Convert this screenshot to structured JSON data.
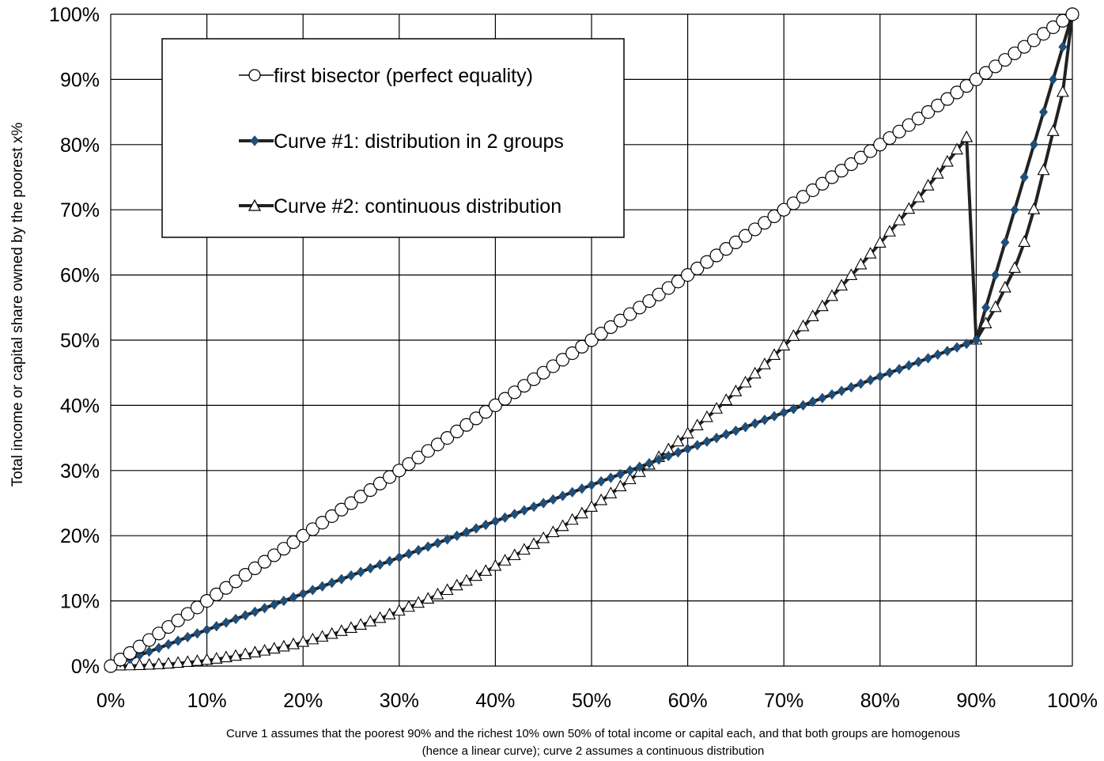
{
  "chart_data": {
    "type": "line",
    "title": "",
    "xlabel": "",
    "ylabel": "Total income or capital share owned by the poorest x%",
    "xlim": [
      0,
      100
    ],
    "ylim": [
      0,
      100
    ],
    "grid": true,
    "legend_position": "top-left",
    "x_ticks": [
      "0%",
      "10%",
      "20%",
      "30%",
      "40%",
      "50%",
      "60%",
      "70%",
      "80%",
      "90%",
      "100%"
    ],
    "y_ticks": [
      "0%",
      "10%",
      "20%",
      "30%",
      "40%",
      "50%",
      "60%",
      "70%",
      "80%",
      "90%",
      "100%"
    ],
    "x": [
      0,
      1,
      2,
      3,
      4,
      5,
      6,
      7,
      8,
      9,
      10,
      11,
      12,
      13,
      14,
      15,
      16,
      17,
      18,
      19,
      20,
      21,
      22,
      23,
      24,
      25,
      26,
      27,
      28,
      29,
      30,
      31,
      32,
      33,
      34,
      35,
      36,
      37,
      38,
      39,
      40,
      41,
      42,
      43,
      44,
      45,
      46,
      47,
      48,
      49,
      50,
      51,
      52,
      53,
      54,
      55,
      56,
      57,
      58,
      59,
      60,
      61,
      62,
      63,
      64,
      65,
      66,
      67,
      68,
      69,
      70,
      71,
      72,
      73,
      74,
      75,
      76,
      77,
      78,
      79,
      80,
      81,
      82,
      83,
      84,
      85,
      86,
      87,
      88,
      89,
      90,
      91,
      92,
      93,
      94,
      95,
      96,
      97,
      98,
      99,
      100
    ],
    "series": [
      {
        "name": "first bisector (perfect equality)",
        "marker": "circle-open",
        "color": "#000000",
        "values": [
          0,
          1,
          2,
          3,
          4,
          5,
          6,
          7,
          8,
          9,
          10,
          11,
          12,
          13,
          14,
          15,
          16,
          17,
          18,
          19,
          20,
          21,
          22,
          23,
          24,
          25,
          26,
          27,
          28,
          29,
          30,
          31,
          32,
          33,
          34,
          35,
          36,
          37,
          38,
          39,
          40,
          41,
          42,
          43,
          44,
          45,
          46,
          47,
          48,
          49,
          50,
          51,
          52,
          53,
          54,
          55,
          56,
          57,
          58,
          59,
          60,
          61,
          62,
          63,
          64,
          65,
          66,
          67,
          68,
          69,
          70,
          71,
          72,
          73,
          74,
          75,
          76,
          77,
          78,
          79,
          80,
          81,
          82,
          83,
          84,
          85,
          86,
          87,
          88,
          89,
          90,
          91,
          92,
          93,
          94,
          95,
          96,
          97,
          98,
          99,
          100
        ]
      },
      {
        "name": "Curve #1: distribution in 2 groups",
        "marker": "diamond-filled",
        "color": "#1f4e79",
        "values": [
          0,
          0.56,
          1.11,
          1.67,
          2.22,
          2.78,
          3.33,
          3.89,
          4.44,
          5,
          5.56,
          6.11,
          6.67,
          7.22,
          7.78,
          8.33,
          8.89,
          9.44,
          10,
          10.56,
          11.11,
          11.67,
          12.22,
          12.78,
          13.33,
          13.89,
          14.44,
          15,
          15.56,
          16.11,
          16.67,
          17.22,
          17.78,
          18.33,
          18.89,
          19.44,
          20,
          20.56,
          21.11,
          21.67,
          22.22,
          22.78,
          23.33,
          23.89,
          24.44,
          25,
          25.56,
          26.11,
          26.67,
          27.22,
          27.78,
          28.33,
          28.89,
          29.44,
          30,
          30.56,
          31.11,
          31.67,
          32.22,
          32.78,
          33.33,
          33.89,
          34.44,
          35,
          35.56,
          36.11,
          36.67,
          37.22,
          37.78,
          38.33,
          38.89,
          39.44,
          40,
          40.56,
          41.11,
          41.67,
          42.22,
          42.78,
          43.33,
          43.89,
          44.44,
          45,
          45.56,
          46.11,
          46.67,
          47.22,
          47.78,
          48.33,
          48.89,
          49.44,
          50,
          55,
          60,
          65,
          70,
          75,
          80,
          85,
          90,
          95,
          100
        ]
      },
      {
        "name": "Curve #2: continuous distribution",
        "marker": "triangle-open",
        "color": "#000000",
        "values": [
          0,
          0.01,
          0.03,
          0.07,
          0.13,
          0.21,
          0.3,
          0.42,
          0.55,
          0.7,
          0.87,
          1.06,
          1.27,
          1.49,
          1.74,
          2.01,
          2.29,
          2.6,
          2.92,
          3.27,
          3.63,
          4.02,
          4.43,
          4.86,
          5.3,
          5.77,
          6.26,
          6.77,
          7.3,
          7.85,
          8.42,
          9.01,
          9.63,
          10.26,
          10.92,
          11.59,
          12.29,
          13.01,
          13.75,
          14.52,
          15.3,
          16.11,
          16.93,
          17.78,
          18.65,
          19.55,
          20.46,
          21.4,
          22.36,
          23.34,
          24.35,
          25.37,
          26.42,
          27.49,
          28.58,
          29.7,
          30.83,
          31.99,
          33.17,
          34.38,
          35.6,
          36.85,
          38.12,
          39.41,
          40.73,
          42.07,
          43.43,
          44.81,
          46.22,
          47.64,
          49.1,
          50.57,
          52.06,
          53.59,
          55.13,
          56.7,
          58.29,
          59.9,
          61.54,
          63.2,
          64.88,
          66.58,
          68.31,
          70.06,
          71.84,
          73.64,
          75.46,
          77.3,
          79.17,
          81.06,
          50,
          52.5,
          55,
          58,
          61,
          65,
          70,
          76,
          82,
          88,
          100
        ]
      }
    ],
    "footnote_lines": [
      "Curve 1 assumes that the poorest 90% and the richest 10% own 50% of total income or capital each, and that both groups are homogenous",
      "(hence a linear curve); curve 2 assumes a continuous distribution"
    ]
  }
}
